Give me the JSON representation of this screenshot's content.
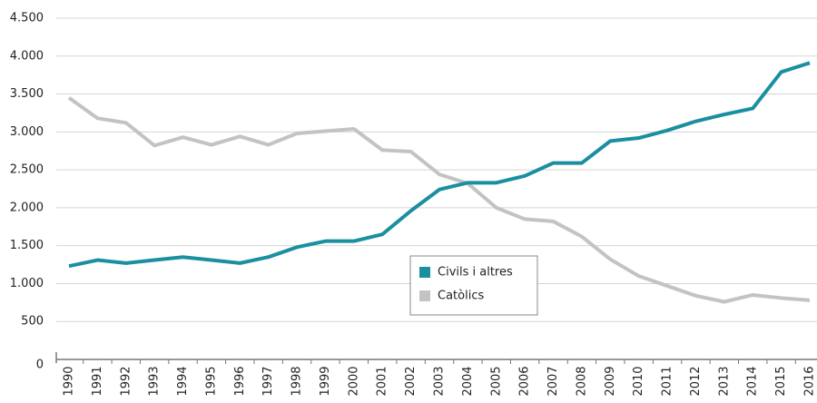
{
  "chart_data": {
    "type": "line",
    "categories": [
      "1990",
      "1991",
      "1992",
      "1993",
      "1994",
      "1995",
      "1996",
      "1997",
      "1998",
      "1999",
      "2000",
      "2001",
      "2002",
      "2003",
      "2004",
      "2005",
      "2006",
      "2007",
      "2008",
      "2009",
      "2010",
      "2011",
      "2012",
      "2013",
      "2014",
      "2015",
      "2016"
    ],
    "series": [
      {
        "name": "Civils i altres",
        "color": "#1a8fa0",
        "values": [
          1230,
          1310,
          1270,
          1310,
          1350,
          1310,
          1270,
          1350,
          1480,
          1560,
          1560,
          1650,
          1960,
          2240,
          2330,
          2330,
          2420,
          2590,
          2590,
          2880,
          2920,
          3020,
          3140,
          3230,
          3310,
          3790,
          3910
        ]
      },
      {
        "name": "Catòlics",
        "color": "#c3c3c3",
        "values": [
          3450,
          3180,
          3120,
          2820,
          2930,
          2830,
          2940,
          2830,
          2980,
          3010,
          3040,
          2760,
          2740,
          2440,
          2320,
          2000,
          1850,
          1820,
          1620,
          1320,
          1100,
          970,
          840,
          760,
          850,
          810,
          780
        ]
      }
    ],
    "ylim": [
      0,
      4500
    ],
    "yticks": [
      0,
      500,
      {
        "value": 1000,
        "label": "1.000"
      },
      {
        "value": 1500,
        "label": "1.500"
      },
      {
        "value": 2000,
        "label": "2.000"
      },
      {
        "value": 2500,
        "label": "2.500"
      },
      {
        "value": 3000,
        "label": "3.000"
      },
      {
        "value": 3500,
        "label": "3.500"
      },
      {
        "value": 4000,
        "label": "4.000"
      },
      {
        "value": 4500,
        "label": "4.500"
      }
    ],
    "grid": true
  }
}
